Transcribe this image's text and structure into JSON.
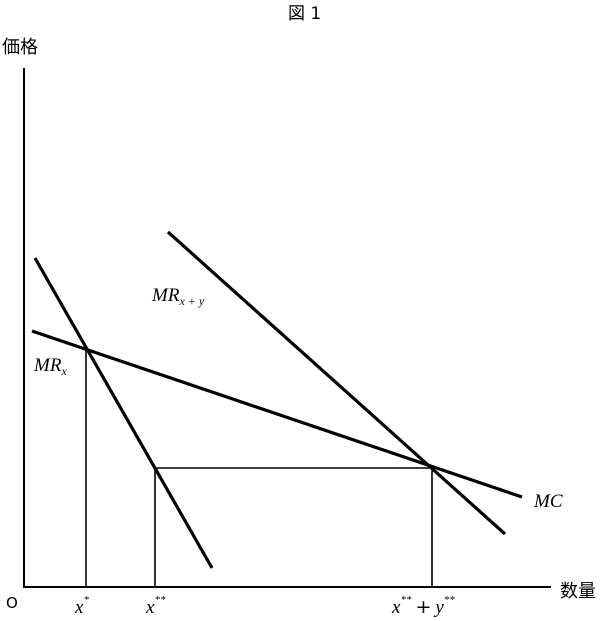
{
  "figure": {
    "title": "図 1",
    "y_axis_label": "価格",
    "x_axis_label": "数量",
    "origin_label": "O"
  },
  "curves": {
    "mr_x": {
      "main": "MR",
      "sub": "x"
    },
    "mr_xy": {
      "main": "MR",
      "sub": "x + y"
    },
    "mc": {
      "main": "MC"
    }
  },
  "ticks": {
    "x_star": {
      "base": "x",
      "sup": "*"
    },
    "x_2star": {
      "base": "x",
      "sup": "**"
    },
    "x_2star_plus_y_2star": {
      "base1": "x",
      "sup1": "**",
      "plus": "+",
      "base2": "y",
      "sup2": "**"
    }
  }
}
